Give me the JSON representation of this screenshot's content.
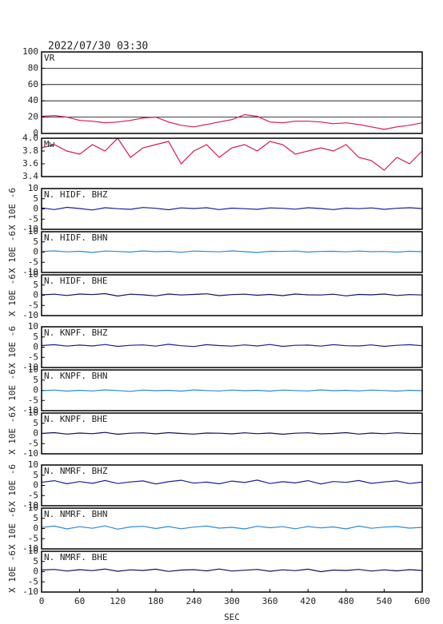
{
  "chart_data": [
    {
      "type": "line",
      "title": "2022/07/30 03:30",
      "label": "VR",
      "color": "#d81a4a",
      "grid": true,
      "xlim": [
        0,
        600
      ],
      "ylim": [
        0,
        100
      ],
      "yticks": [
        0,
        20,
        40,
        60,
        80,
        100
      ],
      "x": [
        0,
        20,
        40,
        60,
        80,
        100,
        120,
        140,
        160,
        180,
        200,
        220,
        240,
        260,
        280,
        300,
        320,
        340,
        360,
        380,
        400,
        420,
        440,
        460,
        480,
        500,
        520,
        540,
        560,
        580,
        600
      ],
      "values": [
        21,
        22,
        20,
        16,
        15,
        13,
        14,
        16,
        19,
        20,
        14,
        10,
        8,
        11,
        14,
        17,
        23,
        21,
        14,
        13,
        15,
        15,
        14,
        12,
        13,
        11,
        8,
        5,
        8,
        10,
        13
      ]
    },
    {
      "type": "line",
      "label": "Mw",
      "color": "#d81a4a",
      "xlim": [
        0,
        600
      ],
      "ylim": [
        3.4,
        4.0
      ],
      "yticks": [
        3.4,
        3.6,
        3.8,
        {
          "value": 4,
          "label": "4.0"
        }
      ],
      "x": [
        0,
        20,
        40,
        60,
        80,
        100,
        120,
        140,
        160,
        180,
        200,
        220,
        240,
        260,
        280,
        300,
        320,
        340,
        360,
        380,
        400,
        420,
        440,
        460,
        480,
        500,
        520,
        540,
        560,
        580,
        600
      ],
      "values": [
        3.85,
        3.9,
        3.8,
        3.75,
        3.9,
        3.8,
        4.0,
        3.7,
        3.85,
        3.9,
        3.95,
        3.6,
        3.8,
        3.9,
        3.7,
        3.85,
        3.9,
        3.8,
        3.95,
        3.9,
        3.75,
        3.8,
        3.85,
        3.8,
        3.9,
        3.7,
        3.65,
        3.5,
        3.7,
        3.6,
        3.8
      ]
    },
    {
      "type": "line",
      "label": "N. HIDF. BHZ",
      "ylabel": "X 10E -6",
      "color": "#1c1c9c",
      "xlim": [
        0,
        600
      ],
      "ylim": [
        -10,
        10
      ],
      "yticks": [
        -10,
        -5,
        0,
        5,
        10
      ],
      "x": [
        0,
        20,
        40,
        60,
        80,
        100,
        120,
        140,
        160,
        180,
        200,
        220,
        240,
        260,
        280,
        300,
        320,
        340,
        360,
        380,
        400,
        420,
        440,
        460,
        480,
        500,
        520,
        540,
        560,
        580,
        600
      ],
      "values": [
        0.5,
        -0.3,
        0.8,
        0.2,
        -0.5,
        0.6,
        0.1,
        -0.2,
        0.7,
        0.3,
        -0.4,
        0.5,
        0.2,
        0.6,
        -0.3,
        0.4,
        0.1,
        -0.2,
        0.5,
        0.3,
        -0.1,
        0.6,
        0.2,
        -0.3,
        0.4,
        0.1,
        0.5,
        -0.2,
        0.3,
        0.6,
        0.2
      ]
    },
    {
      "type": "line",
      "label": "N. HIDF. BHN",
      "ylabel": "X 10E -6",
      "color": "#2a8ad8",
      "xlim": [
        0,
        600
      ],
      "ylim": [
        -10,
        10
      ],
      "yticks": [
        -10,
        -5,
        0,
        5,
        10
      ],
      "x": [
        0,
        20,
        40,
        60,
        80,
        100,
        120,
        140,
        160,
        180,
        200,
        220,
        240,
        260,
        280,
        300,
        320,
        340,
        360,
        380,
        400,
        420,
        440,
        460,
        480,
        500,
        520,
        540,
        560,
        580,
        600
      ],
      "values": [
        0.3,
        0.6,
        0.1,
        0.4,
        -0.2,
        0.5,
        0.3,
        0.0,
        0.6,
        0.2,
        0.4,
        -0.1,
        0.5,
        0.3,
        0.1,
        0.6,
        0.2,
        -0.2,
        0.4,
        0.3,
        0.5,
        0.0,
        0.3,
        0.4,
        0.1,
        0.5,
        0.2,
        0.3,
        0.0,
        0.4,
        0.2
      ]
    },
    {
      "type": "line",
      "label": "N. HIDF. BHE",
      "ylabel": "X 10E -6",
      "color": "#101060",
      "xlim": [
        0,
        600
      ],
      "ylim": [
        -10,
        10
      ],
      "yticks": [
        -10,
        -5,
        0,
        5,
        10
      ],
      "x": [
        0,
        20,
        40,
        60,
        80,
        100,
        120,
        140,
        160,
        180,
        200,
        220,
        240,
        260,
        280,
        300,
        320,
        340,
        360,
        380,
        400,
        420,
        440,
        460,
        480,
        500,
        520,
        540,
        560,
        580,
        600
      ],
      "values": [
        0.2,
        0.5,
        -0.1,
        0.6,
        0.3,
        0.8,
        -0.4,
        0.5,
        0.2,
        -0.3,
        0.6,
        0.1,
        0.4,
        0.7,
        -0.2,
        0.3,
        0.5,
        0.0,
        0.4,
        -0.2,
        0.6,
        0.2,
        0.1,
        0.5,
        -0.3,
        0.4,
        0.2,
        0.6,
        -0.1,
        0.3,
        0.1
      ]
    },
    {
      "type": "line",
      "label": "N. KNPF. BHZ",
      "ylabel": "X 10E -6",
      "color": "#1c1c9c",
      "xlim": [
        0,
        600
      ],
      "ylim": [
        -10,
        10
      ],
      "yticks": [
        -10,
        -5,
        0,
        5,
        10
      ],
      "x": [
        0,
        20,
        40,
        60,
        80,
        100,
        120,
        140,
        160,
        180,
        200,
        220,
        240,
        260,
        280,
        300,
        320,
        340,
        360,
        380,
        400,
        420,
        440,
        460,
        480,
        500,
        520,
        540,
        560,
        580,
        600
      ],
      "values": [
        0.8,
        1.2,
        0.5,
        1.0,
        0.6,
        1.3,
        0.4,
        0.9,
        1.1,
        0.5,
        1.4,
        0.7,
        0.3,
        1.2,
        0.8,
        0.5,
        1.1,
        0.6,
        1.3,
        0.4,
        0.9,
        1.0,
        0.5,
        1.2,
        0.7,
        0.6,
        1.1,
        0.4,
        0.9,
        1.2,
        0.7
      ]
    },
    {
      "type": "line",
      "label": "N. KNPF. BHN",
      "ylabel": "X 10E -6",
      "color": "#2a8ad8",
      "xlim": [
        0,
        600
      ],
      "ylim": [
        -10,
        10
      ],
      "yticks": [
        -10,
        -5,
        0,
        5,
        10
      ],
      "x": [
        0,
        20,
        40,
        60,
        80,
        100,
        120,
        140,
        160,
        180,
        200,
        220,
        240,
        260,
        280,
        300,
        320,
        340,
        360,
        380,
        400,
        420,
        440,
        460,
        480,
        500,
        520,
        540,
        560,
        580,
        600
      ],
      "values": [
        -0.2,
        0.1,
        -0.4,
        0.0,
        -0.3,
        0.2,
        -0.1,
        -0.5,
        0.1,
        -0.2,
        0.0,
        -0.4,
        0.2,
        -0.1,
        -0.3,
        0.1,
        -0.2,
        0.0,
        -0.4,
        0.1,
        -0.1,
        -0.3,
        0.2,
        -0.2,
        0.0,
        -0.3,
        0.1,
        -0.1,
        -0.4,
        0.0,
        -0.2
      ]
    },
    {
      "type": "line",
      "label": "N. KNPF. BHE",
      "ylabel": "X 10E -6",
      "color": "#101060",
      "xlim": [
        0,
        600
      ],
      "ylim": [
        -10,
        10
      ],
      "yticks": [
        -10,
        -5,
        0,
        5,
        10
      ],
      "x": [
        0,
        20,
        40,
        60,
        80,
        100,
        120,
        140,
        160,
        180,
        200,
        220,
        240,
        260,
        280,
        300,
        320,
        340,
        360,
        380,
        400,
        420,
        440,
        460,
        480,
        500,
        520,
        540,
        560,
        580,
        600
      ],
      "values": [
        0.0,
        0.4,
        -0.3,
        0.2,
        -0.1,
        0.5,
        -0.4,
        0.1,
        0.3,
        -0.2,
        0.4,
        0.0,
        -0.3,
        0.2,
        0.1,
        -0.2,
        0.3,
        -0.1,
        0.2,
        -0.4,
        0.1,
        0.3,
        -0.2,
        0.0,
        0.4,
        -0.3,
        0.2,
        -0.1,
        0.3,
        0.0,
        -0.1
      ]
    },
    {
      "type": "line",
      "label": "N. NMRF. BHZ",
      "ylabel": "X 10E -6",
      "color": "#1c1c9c",
      "xlim": [
        0,
        600
      ],
      "ylim": [
        -10,
        10
      ],
      "yticks": [
        -10,
        -5,
        0,
        5,
        10
      ],
      "x": [
        0,
        20,
        40,
        60,
        80,
        100,
        120,
        140,
        160,
        180,
        200,
        220,
        240,
        260,
        280,
        300,
        320,
        340,
        360,
        380,
        400,
        420,
        440,
        460,
        480,
        500,
        520,
        540,
        560,
        580,
        600
      ],
      "values": [
        1.5,
        2.3,
        0.8,
        1.9,
        1.0,
        2.4,
        0.9,
        1.7,
        2.2,
        0.7,
        1.8,
        2.5,
        1.1,
        1.6,
        0.8,
        2.1,
        1.4,
        2.6,
        0.9,
        1.8,
        1.2,
        2.3,
        0.7,
        1.9,
        1.5,
        2.4,
        1.0,
        1.7,
        2.2,
        0.9,
        1.6
      ]
    },
    {
      "type": "line",
      "label": "N. NMRF. BHN",
      "ylabel": "X 10E -6",
      "color": "#2a8ad8",
      "xlim": [
        0,
        600
      ],
      "ylim": [
        -10,
        10
      ],
      "yticks": [
        -10,
        -5,
        0,
        5,
        10
      ],
      "x": [
        0,
        20,
        40,
        60,
        80,
        100,
        120,
        140,
        160,
        180,
        200,
        220,
        240,
        260,
        280,
        300,
        320,
        340,
        360,
        380,
        400,
        420,
        440,
        460,
        480,
        500,
        520,
        540,
        560,
        580,
        600
      ],
      "values": [
        0.5,
        1.2,
        -0.2,
        0.9,
        0.1,
        1.3,
        -0.3,
        0.8,
        1.1,
        0.0,
        1.0,
        -0.1,
        0.7,
        1.2,
        0.2,
        0.6,
        -0.2,
        1.1,
        0.4,
        0.9,
        -0.1,
        1.0,
        0.3,
        0.8,
        -0.2,
        1.2,
        0.1,
        0.7,
        1.0,
        0.2,
        0.6
      ]
    },
    {
      "type": "line",
      "label": "N. NMRF. BHE",
      "ylabel": "X 10E -6",
      "color": "#101060",
      "xlim": [
        0,
        600
      ],
      "ylim": [
        -10,
        10
      ],
      "yticks": [
        -10,
        -5,
        0,
        5,
        10
      ],
      "x": [
        0,
        20,
        40,
        60,
        80,
        100,
        120,
        140,
        160,
        180,
        200,
        220,
        240,
        260,
        280,
        300,
        320,
        340,
        360,
        380,
        400,
        420,
        440,
        460,
        480,
        500,
        520,
        540,
        560,
        580,
        600
      ],
      "values": [
        0.8,
        1.1,
        0.3,
        1.0,
        0.5,
        1.3,
        0.2,
        0.9,
        0.6,
        1.2,
        0.1,
        0.8,
        1.0,
        0.4,
        1.3,
        0.3,
        0.7,
        1.1,
        0.2,
        0.9,
        0.5,
        1.2,
        0.0,
        0.8,
        0.6,
        1.1,
        0.3,
        0.9,
        0.4,
        1.0,
        0.6
      ],
      "xticks": [
        0,
        60,
        120,
        180,
        240,
        300,
        360,
        420,
        480,
        540,
        600
      ],
      "xlabel": "SEC"
    }
  ]
}
